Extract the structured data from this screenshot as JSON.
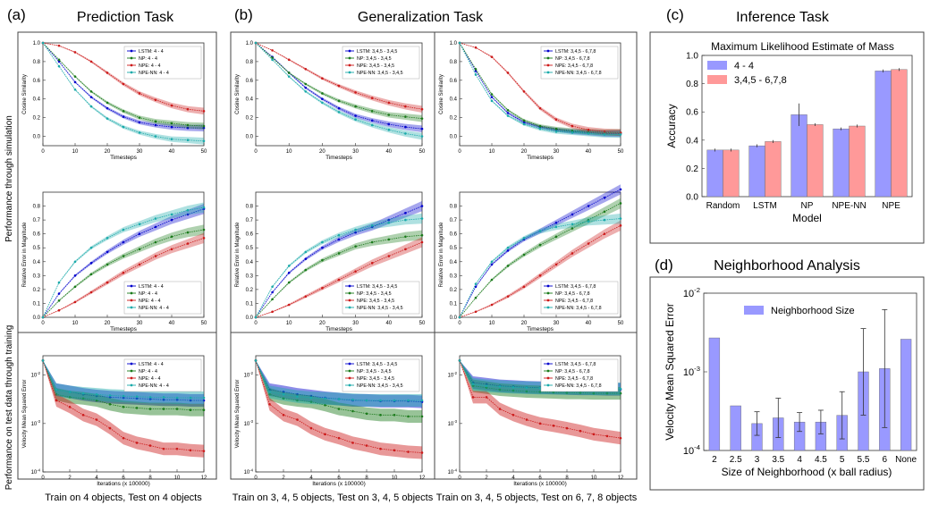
{
  "panels": {
    "a": {
      "letter": "(a)",
      "title": "Prediction Task",
      "caption": "Train on 4 objects, Test on 4 objects"
    },
    "b": {
      "letter": "(b)",
      "title": "Generalization Task",
      "caption_left": "Train on 3, 4, 5 objects, Test on 3, 4, 5 objects",
      "caption_right": "Train on 3, 4, 5 objects, Test on 6, 7, 8 objects"
    },
    "c": {
      "letter": "(c)",
      "title": "Inference Task"
    },
    "d": {
      "letter": "(d)",
      "title": "Neighborhood Analysis"
    }
  },
  "row_labels": {
    "row1": "Performance through simulation",
    "row3": "Performance on test data through training"
  },
  "colors": {
    "LSTM": "#0000cc",
    "NP": "#1a7a1a",
    "NPE": "#cc1a1a",
    "NPE-NN": "#1aaaaa",
    "bar_blue": "#9999ff",
    "bar_red": "#ff9999"
  },
  "chart_data": [
    {
      "id": "a1",
      "type": "line",
      "xlabel": "Timesteps",
      "ylabel": "Cosine Similarity",
      "xlim": [
        0,
        50
      ],
      "ylim": [
        -0.1,
        1.0
      ],
      "xticks": [
        "0",
        "10",
        "20",
        "30",
        "40",
        "50"
      ],
      "yticks": [
        "0.0",
        "0.2",
        "0.4",
        "0.6",
        "0.8",
        "1.0"
      ],
      "x": [
        0,
        5,
        10,
        15,
        20,
        25,
        30,
        35,
        40,
        45,
        50
      ],
      "series": [
        {
          "name": "LSTM: 4 - 4",
          "values": [
            1.0,
            0.8,
            0.58,
            0.42,
            0.3,
            0.21,
            0.15,
            0.12,
            0.1,
            0.09,
            0.09
          ]
        },
        {
          "name": "NP: 4 - 4",
          "values": [
            1.0,
            0.82,
            0.64,
            0.48,
            0.36,
            0.27,
            0.2,
            0.16,
            0.14,
            0.12,
            0.11
          ]
        },
        {
          "name": "NPE: 4 - 4",
          "values": [
            1.0,
            0.97,
            0.9,
            0.8,
            0.68,
            0.56,
            0.46,
            0.39,
            0.33,
            0.29,
            0.27
          ]
        },
        {
          "name": "NPE-NN: 4 - 4",
          "values": [
            1.0,
            0.75,
            0.5,
            0.32,
            0.19,
            0.1,
            0.04,
            0.0,
            -0.03,
            -0.04,
            -0.05
          ]
        }
      ]
    },
    {
      "id": "a2",
      "type": "line",
      "xlabel": "Timesteps",
      "ylabel": "Relative Error in Magnitude",
      "xlim": [
        0,
        50
      ],
      "ylim": [
        0,
        0.9
      ],
      "xticks": [
        "0",
        "10",
        "20",
        "30",
        "40",
        "50"
      ],
      "yticks": [
        "0.0",
        "0.1",
        "0.2",
        "0.3",
        "0.4",
        "0.5",
        "0.6",
        "0.7",
        "0.8"
      ],
      "x": [
        0,
        5,
        10,
        15,
        20,
        25,
        30,
        35,
        40,
        45,
        50
      ],
      "series": [
        {
          "name": "LSTM: 4 - 4",
          "values": [
            0.0,
            0.17,
            0.3,
            0.39,
            0.47,
            0.54,
            0.6,
            0.65,
            0.7,
            0.74,
            0.78
          ]
        },
        {
          "name": "NP: 4 - 4",
          "values": [
            0.0,
            0.12,
            0.22,
            0.31,
            0.38,
            0.44,
            0.49,
            0.54,
            0.58,
            0.61,
            0.63
          ]
        },
        {
          "name": "NPE: 4 - 4",
          "values": [
            0.0,
            0.05,
            0.11,
            0.18,
            0.25,
            0.32,
            0.38,
            0.44,
            0.49,
            0.53,
            0.57
          ]
        },
        {
          "name": "NPE-NN: 4 - 4",
          "values": [
            0.0,
            0.25,
            0.4,
            0.5,
            0.57,
            0.63,
            0.67,
            0.71,
            0.74,
            0.77,
            0.79
          ]
        }
      ]
    },
    {
      "id": "a3",
      "type": "line",
      "log_y": true,
      "xlabel": "Iterations (x 100000)",
      "ylabel": "Velocity Mean Squared Error",
      "xlim": [
        0,
        12
      ],
      "ylim_log": [
        -4,
        -1.6
      ],
      "xticks": [
        "0",
        "2",
        "4",
        "6",
        "8",
        "10",
        "12"
      ],
      "yticks": [
        "10-4",
        "10-3",
        "10-2"
      ],
      "x": [
        0,
        1,
        2,
        3,
        4,
        5,
        6,
        7,
        8,
        9,
        10,
        11,
        12
      ],
      "series": [
        {
          "name": "LSTM: 4 - 4",
          "values": [
            0.02,
            0.005,
            0.0045,
            0.004,
            0.0037,
            0.0035,
            0.0034,
            0.0033,
            0.0032,
            0.0031,
            0.0031,
            0.003,
            0.003
          ]
        },
        {
          "name": "NP: 4 - 4",
          "values": [
            0.02,
            0.004,
            0.0035,
            0.0033,
            0.003,
            0.0025,
            0.0022,
            0.0021,
            0.002,
            0.002,
            0.002,
            0.0019,
            0.0019
          ]
        },
        {
          "name": "NPE: 4 - 4",
          "values": [
            0.02,
            0.003,
            0.0022,
            0.0015,
            0.0012,
            0.0008,
            0.0005,
            0.0004,
            0.00035,
            0.0003,
            0.0003,
            0.00028,
            0.00027
          ]
        },
        {
          "name": "NPE-NN: 4 - 4",
          "values": [
            0.02,
            0.005,
            0.0045,
            0.0042,
            0.004,
            0.0038,
            0.0037,
            0.0036,
            0.0035,
            0.0035,
            0.0034,
            0.0034,
            0.0034
          ]
        }
      ]
    },
    {
      "id": "b1",
      "type": "line",
      "xlabel": "Timesteps",
      "ylabel": "Cosine Similarity",
      "xlim": [
        0,
        50
      ],
      "ylim": [
        -0.1,
        1.0
      ],
      "xticks": [
        "0",
        "10",
        "20",
        "30",
        "40",
        "50"
      ],
      "yticks": [
        "0.0",
        "0.2",
        "0.4",
        "0.6",
        "0.8",
        "1.0"
      ],
      "x": [
        0,
        5,
        10,
        15,
        20,
        25,
        30,
        35,
        40,
        45,
        50
      ],
      "series": [
        {
          "name": "LSTM: 3,4,5 - 3,4,5",
          "values": [
            1.0,
            0.85,
            0.68,
            0.52,
            0.4,
            0.3,
            0.22,
            0.17,
            0.13,
            0.1,
            0.08
          ]
        },
        {
          "name": "NP: 3,4,5 - 3,4,5",
          "values": [
            1.0,
            0.84,
            0.68,
            0.56,
            0.46,
            0.38,
            0.32,
            0.27,
            0.23,
            0.21,
            0.19
          ]
        },
        {
          "name": "NPE: 3,4,5 - 3,4,5",
          "values": [
            1.0,
            0.92,
            0.82,
            0.72,
            0.62,
            0.54,
            0.47,
            0.41,
            0.36,
            0.32,
            0.29
          ]
        },
        {
          "name": "NPE-NN: 3,4,5 - 3,4,5",
          "values": [
            1.0,
            0.82,
            0.64,
            0.48,
            0.36,
            0.26,
            0.18,
            0.12,
            0.07,
            0.03,
            0.0
          ]
        }
      ]
    },
    {
      "id": "b2",
      "type": "line",
      "xlabel": "Timesteps",
      "ylabel": "Cosine Similarity",
      "xlim": [
        0,
        50
      ],
      "ylim": [
        -0.1,
        1.0
      ],
      "xticks": [
        "0",
        "10",
        "20",
        "30",
        "40",
        "50"
      ],
      "yticks": [
        "0.0",
        "0.2",
        "0.4",
        "0.6",
        "0.8",
        "1.0"
      ],
      "x": [
        0,
        5,
        10,
        15,
        20,
        25,
        30,
        35,
        40,
        45,
        50
      ],
      "series": [
        {
          "name": "LSTM: 3,4,5 - 6,7,8",
          "values": [
            1.0,
            0.7,
            0.42,
            0.25,
            0.15,
            0.1,
            0.07,
            0.05,
            0.04,
            0.03,
            0.03
          ]
        },
        {
          "name": "NP: 3,4,5 - 6,7,8",
          "values": [
            1.0,
            0.72,
            0.45,
            0.28,
            0.17,
            0.11,
            0.08,
            0.06,
            0.05,
            0.04,
            0.04
          ]
        },
        {
          "name": "NPE: 3,4,5 - 6,7,8",
          "values": [
            1.0,
            0.95,
            0.85,
            0.68,
            0.48,
            0.3,
            0.18,
            0.11,
            0.07,
            0.05,
            0.04
          ]
        },
        {
          "name": "NPE-NN: 3,4,5 - 6,7,8",
          "values": [
            1.0,
            0.66,
            0.38,
            0.22,
            0.13,
            0.08,
            0.05,
            0.04,
            0.03,
            0.02,
            0.02
          ]
        }
      ]
    },
    {
      "id": "b3",
      "type": "line",
      "xlabel": "Timesteps",
      "ylabel": "Relative Error in Magnitude",
      "xlim": [
        0,
        50
      ],
      "ylim": [
        0,
        0.9
      ],
      "xticks": [
        "0",
        "10",
        "20",
        "30",
        "40",
        "50"
      ],
      "yticks": [
        "0.0",
        "0.1",
        "0.2",
        "0.3",
        "0.4",
        "0.5",
        "0.6",
        "0.7",
        "0.8"
      ],
      "x": [
        0,
        5,
        10,
        15,
        20,
        25,
        30,
        35,
        40,
        45,
        50
      ],
      "series": [
        {
          "name": "LSTM: 3,4,5 - 3,4,5",
          "values": [
            0.0,
            0.18,
            0.32,
            0.42,
            0.5,
            0.56,
            0.61,
            0.65,
            0.7,
            0.75,
            0.8
          ]
        },
        {
          "name": "NP: 3,4,5 - 3,4,5",
          "values": [
            0.0,
            0.13,
            0.25,
            0.34,
            0.41,
            0.46,
            0.51,
            0.54,
            0.56,
            0.58,
            0.59
          ]
        },
        {
          "name": "NPE: 3,4,5 - 3,4,5",
          "values": [
            0.0,
            0.04,
            0.09,
            0.15,
            0.21,
            0.27,
            0.33,
            0.39,
            0.44,
            0.49,
            0.54
          ]
        },
        {
          "name": "NPE-NN: 3,4,5 - 3,4,5",
          "values": [
            0.0,
            0.22,
            0.37,
            0.47,
            0.54,
            0.59,
            0.63,
            0.66,
            0.68,
            0.7,
            0.71
          ]
        }
      ]
    },
    {
      "id": "b4",
      "type": "line",
      "xlabel": "Timesteps",
      "ylabel": "Relative Error in Magnitude",
      "xlim": [
        0,
        50
      ],
      "ylim": [
        0,
        0.9
      ],
      "xticks": [
        "0",
        "10",
        "20",
        "30",
        "40",
        "50"
      ],
      "yticks": [
        "0.0",
        "0.1",
        "0.2",
        "0.3",
        "0.4",
        "0.5",
        "0.6",
        "0.7",
        "0.8"
      ],
      "x": [
        0,
        5,
        10,
        15,
        20,
        25,
        30,
        35,
        40,
        45,
        50
      ],
      "series": [
        {
          "name": "LSTM: 3,4,5 - 6,7,8",
          "values": [
            0.0,
            0.22,
            0.38,
            0.48,
            0.56,
            0.62,
            0.68,
            0.74,
            0.8,
            0.86,
            0.92
          ]
        },
        {
          "name": "NP: 3,4,5 - 6,7,8",
          "values": [
            0.0,
            0.14,
            0.27,
            0.37,
            0.45,
            0.52,
            0.58,
            0.64,
            0.7,
            0.76,
            0.82
          ]
        },
        {
          "name": "NPE: 3,4,5 - 6,7,8",
          "values": [
            0.0,
            0.04,
            0.09,
            0.15,
            0.22,
            0.3,
            0.38,
            0.46,
            0.53,
            0.6,
            0.66
          ]
        },
        {
          "name": "NPE-NN: 3,4,5 - 6,7,8",
          "values": [
            0.0,
            0.24,
            0.4,
            0.5,
            0.57,
            0.62,
            0.65,
            0.67,
            0.69,
            0.7,
            0.71
          ]
        }
      ]
    },
    {
      "id": "b5",
      "type": "line",
      "log_y": true,
      "xlabel": "Iterations (x 100000)",
      "ylabel": "Velocity Mean Squared Error",
      "xlim": [
        0,
        12
      ],
      "ylim_log": [
        -4,
        -1.6
      ],
      "xticks": [
        "0",
        "2",
        "4",
        "6",
        "8",
        "10",
        "12"
      ],
      "yticks": [
        "10-4",
        "10-3",
        "10-2"
      ],
      "x": [
        0,
        1,
        2,
        3,
        4,
        5,
        6,
        7,
        8,
        9,
        10,
        11,
        12
      ],
      "series": [
        {
          "name": "LSTM: 3,4,5 - 3,4,5",
          "values": [
            0.02,
            0.005,
            0.0045,
            0.004,
            0.0037,
            0.0034,
            0.0032,
            0.003,
            0.003,
            0.0029,
            0.0029,
            0.0029,
            0.0028
          ]
        },
        {
          "name": "NP: 3,4,5 - 3,4,5",
          "values": [
            0.02,
            0.004,
            0.0033,
            0.003,
            0.0028,
            0.0024,
            0.002,
            0.0018,
            0.0016,
            0.0015,
            0.0015,
            0.0014,
            0.0014
          ]
        },
        {
          "name": "NPE: 3,4,5 - 3,4,5",
          "values": [
            0.02,
            0.0025,
            0.0015,
            0.0012,
            0.0008,
            0.0006,
            0.0005,
            0.0004,
            0.00035,
            0.0003,
            0.00028,
            0.00026,
            0.00025
          ]
        },
        {
          "name": "NPE-NN: 3,4,5 - 3,4,5",
          "values": [
            0.02,
            0.0045,
            0.004,
            0.0036,
            0.0034,
            0.0033,
            0.0032,
            0.0031,
            0.003,
            0.003,
            0.003,
            0.003,
            0.003
          ]
        }
      ]
    },
    {
      "id": "b6",
      "type": "line",
      "log_y": true,
      "xlabel": "Iterations (x 100000)",
      "ylabel": "",
      "xlim": [
        0,
        12
      ],
      "ylim_log": [
        -4,
        -1.6
      ],
      "xticks": [
        "0",
        "2",
        "4",
        "6",
        "8",
        "10",
        "12"
      ],
      "yticks": [
        "10-4",
        "10-3",
        "10-2"
      ],
      "x": [
        0,
        1,
        2,
        3,
        4,
        5,
        6,
        7,
        8,
        9,
        10,
        11,
        12
      ],
      "series": [
        {
          "name": "LSTM: 3,4,5 - 6,7,8",
          "values": [
            0.02,
            0.007,
            0.0065,
            0.006,
            0.0058,
            0.0056,
            0.0055,
            0.0054,
            0.0053,
            0.0052,
            0.0052,
            0.0051,
            0.0051
          ]
        },
        {
          "name": "NP: 3,4,5 - 6,7,8",
          "values": [
            0.02,
            0.006,
            0.0055,
            0.005,
            0.0048,
            0.0046,
            0.0045,
            0.0044,
            0.0043,
            0.0043,
            0.0042,
            0.0042,
            0.0042
          ]
        },
        {
          "name": "NPE: 3,4,5 - 6,7,8",
          "values": [
            0.02,
            0.0035,
            0.0035,
            0.002,
            0.0015,
            0.0012,
            0.001,
            0.0009,
            0.0008,
            0.0007,
            0.0006,
            0.00055,
            0.0005
          ]
        },
        {
          "name": "NPE-NN: 3,4,5 - 6,7,8",
          "values": [
            0.02,
            0.0065,
            0.006,
            0.0058,
            0.0056,
            0.0055,
            0.0054,
            0.0054,
            0.0053,
            0.0053,
            0.0052,
            0.0052,
            0.0052
          ]
        }
      ]
    },
    {
      "id": "c",
      "type": "bar",
      "title": "Maximum Likelihood Estimate of Mass",
      "xlabel": "Model",
      "ylabel": "Accuracy",
      "ylim": [
        0,
        1.0
      ],
      "yticks": [
        "0.0",
        "0.2",
        "0.4",
        "0.6",
        "0.8",
        "1.0"
      ],
      "categories": [
        "Random",
        "LSTM",
        "NP",
        "NPE-NN",
        "NPE"
      ],
      "legend_position": "top-left",
      "series": [
        {
          "name": "4 - 4",
          "values": [
            0.33,
            0.36,
            0.58,
            0.48,
            0.89
          ]
        },
        {
          "name": "3,4,5 - 6,7,8",
          "values": [
            0.33,
            0.39,
            0.51,
            0.5,
            0.9
          ]
        }
      ]
    },
    {
      "id": "d",
      "type": "bar",
      "log_y": true,
      "xlabel": "Size of Neighborhood (x ball radius)",
      "ylabel": "Velocity Mean Squared Error",
      "ylim_log": [
        -4,
        -2
      ],
      "yticks": [
        "10-4",
        "10-3",
        "10-2"
      ],
      "categories": [
        "2",
        "2.5",
        "3",
        "3.5",
        "4",
        "4.5",
        "5",
        "5.5",
        "6",
        "None"
      ],
      "legend_position": "top-center",
      "series": [
        {
          "name": "Neighborhood Size",
          "values": [
            0.0027,
            0.00037,
            0.00022,
            0.00026,
            0.00023,
            0.00023,
            0.00028,
            0.001,
            0.0011,
            0.0026
          ]
        }
      ]
    }
  ]
}
